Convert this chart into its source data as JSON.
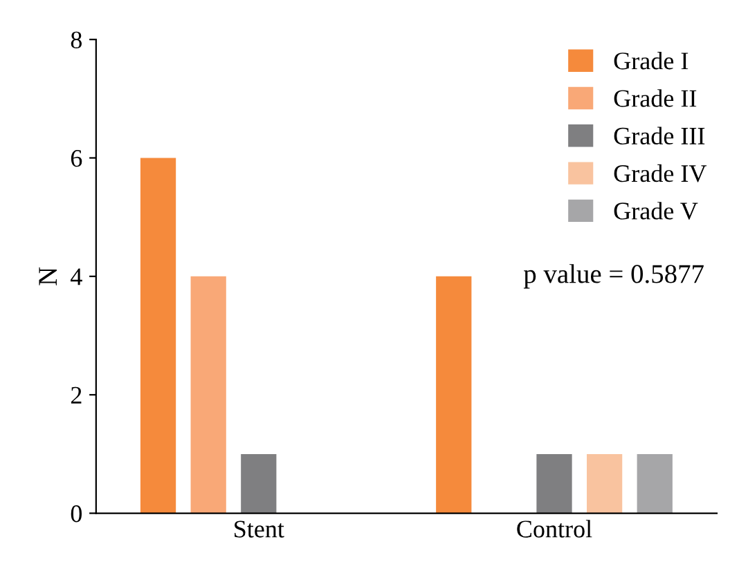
{
  "chart_data": {
    "type": "bar",
    "categories": [
      "Stent",
      "Control"
    ],
    "ylabel": "N",
    "series": [
      {
        "name": "Grade I",
        "color": "#f58a3c",
        "values": [
          6,
          4
        ]
      },
      {
        "name": "Grade II",
        "color": "#f9a877",
        "values": [
          4,
          0
        ]
      },
      {
        "name": "Grade III",
        "color": "#7f7f81",
        "values": [
          1,
          1
        ]
      },
      {
        "name": "Grade IV",
        "color": "#f9c39f",
        "values": [
          0,
          1
        ]
      },
      {
        "name": "Grade V",
        "color": "#a6a6a8",
        "values": [
          0,
          1
        ]
      }
    ],
    "ylim": [
      0,
      8
    ],
    "yticks": [
      0,
      2,
      4,
      6,
      8
    ],
    "grid": false,
    "legend": "top right",
    "annotations": [
      "p value = 0.5877"
    ]
  }
}
